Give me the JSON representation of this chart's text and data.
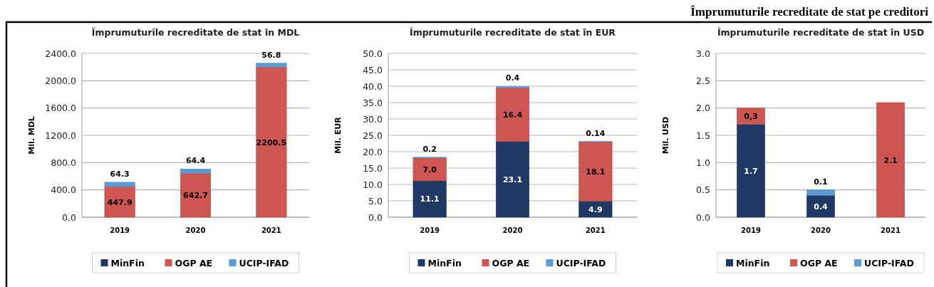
{
  "chart_data": [
    {
      "type": "bar",
      "stacked": true,
      "title": "Împrumuturile recreditate de stat în MDL",
      "ylabel": "Mil. MDL",
      "categories": [
        "2019",
        "2020",
        "2021"
      ],
      "ylim": [
        0,
        2400
      ],
      "yticks": [
        {
          "value": 0,
          "label": "0.0"
        },
        {
          "value": 400,
          "label": "400.0"
        },
        {
          "value": 800,
          "label": "800.0"
        },
        {
          "value": 1200,
          "label": "1200.0"
        },
        {
          "value": 1600,
          "label": "1600.0"
        },
        {
          "value": 2000,
          "label": "2000.0"
        },
        {
          "value": 2400,
          "label": "2400.0"
        }
      ],
      "grid": "y",
      "legend": "bottom",
      "series": [
        {
          "name": "MinFin",
          "color": "#1f3864",
          "values": [
            null,
            null,
            null
          ]
        },
        {
          "name": "OGP AE",
          "color": "#cd5652",
          "values": [
            447.9,
            642.7,
            2200.5
          ],
          "value_labels": [
            "447.9",
            "642.7",
            "2200.5"
          ]
        },
        {
          "name": "UCIP-IFAD",
          "color": "#5b9bd5",
          "values": [
            64.3,
            64.4,
            56.8
          ],
          "value_labels": [
            "64.3",
            "64.4",
            "56.8"
          ]
        }
      ]
    },
    {
      "type": "bar",
      "stacked": true,
      "title": "Împrumuturile recreditate de stat în EUR",
      "ylabel": "Mil. EUR",
      "categories": [
        "2019",
        "2020",
        "2021"
      ],
      "ylim": [
        0,
        50
      ],
      "yticks": [
        {
          "value": 0,
          "label": "0.0"
        },
        {
          "value": 5,
          "label": "5.0"
        },
        {
          "value": 10,
          "label": "10.0"
        },
        {
          "value": 15,
          "label": "15.0"
        },
        {
          "value": 20,
          "label": "20.0"
        },
        {
          "value": 25,
          "label": "25.0"
        },
        {
          "value": 30,
          "label": "30.0"
        },
        {
          "value": 35,
          "label": "35.0"
        },
        {
          "value": 40,
          "label": "40.0"
        },
        {
          "value": 45,
          "label": "45.0"
        },
        {
          "value": 50,
          "label": "50.0"
        }
      ],
      "grid": "y",
      "legend": "bottom",
      "series": [
        {
          "name": "MinFin",
          "color": "#1f3864",
          "values": [
            11.1,
            23.1,
            4.9
          ],
          "value_labels": [
            "11.1",
            "23.1",
            "4.9"
          ]
        },
        {
          "name": "OGP AE",
          "color": "#cd5652",
          "values": [
            7.0,
            16.4,
            18.1
          ],
          "value_labels": [
            "7.0",
            "16.4",
            "18.1"
          ]
        },
        {
          "name": "UCIP-IFAD",
          "color": "#5b9bd5",
          "values": [
            0.2,
            0.4,
            0.14
          ],
          "value_labels": [
            "0.2",
            "0.4",
            "0.14"
          ]
        }
      ]
    },
    {
      "type": "bar",
      "stacked": true,
      "title": "Împrumuturile recreditate de stat în USD",
      "ylabel": "Mil. USD",
      "categories": [
        "2019",
        "2020",
        "2021"
      ],
      "ylim": [
        0,
        3
      ],
      "yticks": [
        {
          "value": 0,
          "label": "0.0"
        },
        {
          "value": 0.5,
          "label": "0.5"
        },
        {
          "value": 1,
          "label": "1.0"
        },
        {
          "value": 1.5,
          "label": "1.5"
        },
        {
          "value": 2,
          "label": "2.0"
        },
        {
          "value": 2.5,
          "label": "2.5"
        },
        {
          "value": 3,
          "label": "3.0"
        }
      ],
      "grid": "y",
      "legend": "bottom",
      "annotations": [
        "Împrumuturile recreditate de stat pe creditori"
      ],
      "series": [
        {
          "name": "MinFin",
          "color": "#1f3864",
          "values": [
            1.7,
            0.4,
            null
          ],
          "value_labels": [
            "1.7",
            "0.4",
            null
          ]
        },
        {
          "name": "OGP AE",
          "color": "#cd5652",
          "values": [
            0.3,
            null,
            2.1
          ],
          "value_labels": [
            "0,3",
            null,
            "2.1"
          ]
        },
        {
          "name": "UCIP-IFAD",
          "color": "#5b9bd5",
          "values": [
            null,
            0.1,
            null
          ],
          "value_labels": [
            null,
            "0.1",
            null
          ]
        }
      ]
    }
  ]
}
